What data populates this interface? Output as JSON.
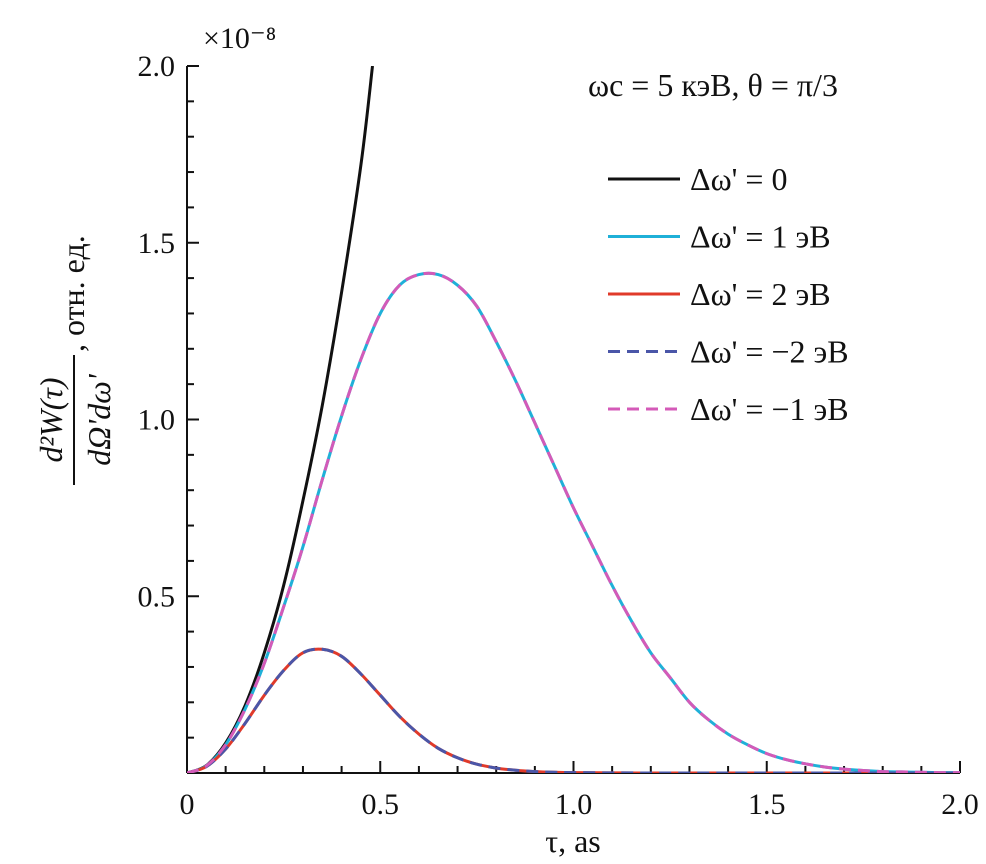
{
  "chart_data": {
    "type": "line",
    "title": "",
    "xlabel": "τ, as",
    "ylabel": {
      "numerator": "d²W(τ)",
      "denominator": "dΩ'dω'",
      "units": ", отн. ед."
    },
    "xlim": [
      0,
      2.0
    ],
    "ylim": [
      0,
      2.0
    ],
    "y_scale_label": "×10⁻⁸",
    "xticks": [
      {
        "value": 0,
        "label": "0"
      },
      {
        "value": 0.5,
        "label": "0.5"
      },
      {
        "value": 1.0,
        "label": "1.0"
      },
      {
        "value": 1.5,
        "label": "1.5"
      },
      {
        "value": 2.0,
        "label": "2.0"
      }
    ],
    "yticks": [
      {
        "value": 0.5,
        "label": "0.5"
      },
      {
        "value": 1.0,
        "label": "1.0"
      },
      {
        "value": 1.5,
        "label": "1.5"
      },
      {
        "value": 2.0,
        "label": "2.0"
      }
    ],
    "grid": false,
    "annotation": "ωc = 5 кэВ, θ = π/3",
    "legend_position": "top-right",
    "series": [
      {
        "name": "Δω' = 0",
        "color": "#111111",
        "dash": "solid",
        "x": [
          0,
          0.05,
          0.1,
          0.15,
          0.2,
          0.25,
          0.3,
          0.35,
          0.4,
          0.45,
          0.48
        ],
        "y": [
          0,
          0.021,
          0.085,
          0.19,
          0.34,
          0.53,
          0.77,
          1.04,
          1.36,
          1.72,
          2.0
        ]
      },
      {
        "name": "Δω' = 1 эВ",
        "color": "#1fb0d8",
        "dash": "solid",
        "x": [
          0,
          0.05,
          0.1,
          0.15,
          0.2,
          0.25,
          0.3,
          0.35,
          0.4,
          0.45,
          0.5,
          0.55,
          0.6,
          0.65,
          0.7,
          0.75,
          0.8,
          0.85,
          0.9,
          0.95,
          1.0,
          1.05,
          1.1,
          1.15,
          1.2,
          1.25,
          1.3,
          1.35,
          1.4,
          1.45,
          1.5,
          1.55,
          1.6,
          1.65,
          1.7,
          1.75,
          1.8,
          1.85,
          1.9,
          1.95,
          2.0
        ],
        "y": [
          0,
          0.02,
          0.08,
          0.18,
          0.31,
          0.47,
          0.64,
          0.83,
          1.01,
          1.17,
          1.3,
          1.38,
          1.41,
          1.41,
          1.38,
          1.32,
          1.22,
          1.11,
          0.99,
          0.87,
          0.75,
          0.64,
          0.53,
          0.43,
          0.34,
          0.27,
          0.2,
          0.15,
          0.11,
          0.08,
          0.055,
          0.038,
          0.026,
          0.017,
          0.011,
          0.007,
          0.004,
          0.003,
          0.002,
          0.001,
          0.001
        ]
      },
      {
        "name": "Δω' = 2 эВ",
        "color": "#e03a2a",
        "dash": "solid",
        "x": [
          0,
          0.05,
          0.1,
          0.15,
          0.2,
          0.25,
          0.3,
          0.35,
          0.4,
          0.45,
          0.5,
          0.55,
          0.6,
          0.65,
          0.7,
          0.75,
          0.8,
          0.85,
          0.9,
          0.95,
          1.0,
          1.1,
          1.2,
          1.4,
          1.6,
          2.0
        ],
        "y": [
          0,
          0.018,
          0.068,
          0.14,
          0.22,
          0.29,
          0.34,
          0.35,
          0.33,
          0.28,
          0.22,
          0.16,
          0.11,
          0.07,
          0.043,
          0.025,
          0.014,
          0.008,
          0.004,
          0.002,
          0.001,
          0.0004,
          0.0001,
          0,
          0,
          0
        ]
      },
      {
        "name": "Δω' = −2 эВ",
        "color": "#4a56a8",
        "dash": "dashed",
        "x": [
          0,
          0.05,
          0.1,
          0.15,
          0.2,
          0.25,
          0.3,
          0.35,
          0.4,
          0.45,
          0.5,
          0.55,
          0.6,
          0.65,
          0.7,
          0.75,
          0.8,
          0.85,
          0.9,
          0.95,
          1.0,
          1.1,
          1.2,
          1.4,
          1.6,
          2.0
        ],
        "y": [
          0,
          0.018,
          0.068,
          0.14,
          0.22,
          0.29,
          0.34,
          0.35,
          0.33,
          0.28,
          0.22,
          0.16,
          0.11,
          0.07,
          0.043,
          0.025,
          0.014,
          0.008,
          0.004,
          0.002,
          0.001,
          0.0004,
          0.0001,
          0,
          0,
          0
        ]
      },
      {
        "name": "Δω' = −1 эВ",
        "color": "#d45ab8",
        "dash": "dashed",
        "x": [
          0,
          0.05,
          0.1,
          0.15,
          0.2,
          0.25,
          0.3,
          0.35,
          0.4,
          0.45,
          0.5,
          0.55,
          0.6,
          0.65,
          0.7,
          0.75,
          0.8,
          0.85,
          0.9,
          0.95,
          1.0,
          1.05,
          1.1,
          1.15,
          1.2,
          1.25,
          1.3,
          1.35,
          1.4,
          1.45,
          1.5,
          1.55,
          1.6,
          1.65,
          1.7,
          1.75,
          1.8,
          1.85,
          1.9,
          1.95,
          2.0
        ],
        "y": [
          0,
          0.02,
          0.08,
          0.18,
          0.31,
          0.47,
          0.64,
          0.83,
          1.01,
          1.17,
          1.3,
          1.38,
          1.41,
          1.41,
          1.38,
          1.32,
          1.22,
          1.11,
          0.99,
          0.87,
          0.75,
          0.64,
          0.53,
          0.43,
          0.34,
          0.27,
          0.2,
          0.15,
          0.11,
          0.08,
          0.055,
          0.038,
          0.026,
          0.017,
          0.011,
          0.007,
          0.004,
          0.003,
          0.002,
          0.001,
          0.001
        ]
      }
    ]
  }
}
